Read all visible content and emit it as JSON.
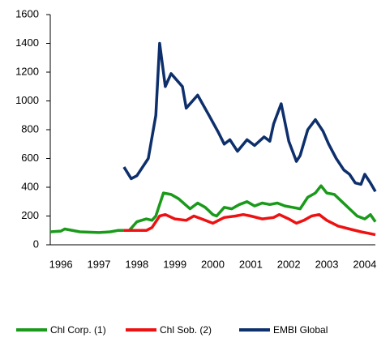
{
  "chart_data": {
    "type": "line",
    "xlim": [
      1995.72,
      2004.28
    ],
    "xticks": [
      1996,
      1997,
      1998,
      1999,
      2000,
      2001,
      2002,
      2003,
      2004
    ],
    "ylim": [
      0,
      1600
    ],
    "yticks": [
      0,
      200,
      400,
      600,
      800,
      1000,
      1200,
      1400,
      1600
    ],
    "grid": false,
    "legend": "bottom",
    "series": [
      {
        "name": "Chl Corp. (1)",
        "color": "#1a9a1a",
        "x": [
          1995.72,
          1996.0,
          1996.1,
          1996.5,
          1997.0,
          1997.3,
          1997.5,
          1997.8,
          1998.0,
          1998.25,
          1998.4,
          1998.5,
          1998.7,
          1998.9,
          1999.1,
          1999.4,
          1999.6,
          1999.8,
          2000.0,
          2000.1,
          2000.3,
          2000.5,
          2000.7,
          2000.9,
          2001.1,
          2001.3,
          2001.5,
          2001.7,
          2001.9,
          2002.1,
          2002.3,
          2002.5,
          2002.7,
          2002.85,
          2003.0,
          2003.2,
          2003.4,
          2003.6,
          2003.8,
          2004.0,
          2004.15,
          2004.28
        ],
        "values": [
          90,
          95,
          110,
          90,
          85,
          90,
          100,
          100,
          160,
          180,
          170,
          200,
          360,
          350,
          320,
          250,
          290,
          260,
          210,
          200,
          260,
          250,
          280,
          300,
          270,
          290,
          280,
          290,
          270,
          260,
          250,
          330,
          360,
          410,
          360,
          350,
          300,
          250,
          200,
          180,
          210,
          160
        ]
      },
      {
        "name": "Chl Sob. (2)",
        "color": "#ee1111",
        "x": [
          1997.66,
          1998.0,
          1998.25,
          1998.4,
          1998.6,
          1998.75,
          1999.0,
          1999.3,
          1999.5,
          1999.8,
          2000.0,
          2000.3,
          2000.6,
          2000.8,
          2001.0,
          2001.3,
          2001.6,
          2001.75,
          2002.0,
          2002.2,
          2002.4,
          2002.6,
          2002.8,
          2003.0,
          2003.3,
          2003.6,
          2003.9,
          2004.1,
          2004.28
        ],
        "values": [
          100,
          100,
          100,
          120,
          200,
          210,
          180,
          170,
          200,
          170,
          150,
          190,
          200,
          210,
          200,
          180,
          190,
          210,
          180,
          150,
          170,
          200,
          210,
          170,
          130,
          110,
          90,
          80,
          70
        ]
      },
      {
        "name": "EMBI Global",
        "color": "#0d2f6b",
        "x": [
          1997.66,
          1997.85,
          1998.0,
          1998.3,
          1998.5,
          1998.6,
          1998.75,
          1998.9,
          1999.2,
          1999.3,
          1999.6,
          1999.9,
          2000.15,
          2000.3,
          2000.45,
          2000.65,
          2000.9,
          2001.1,
          2001.35,
          2001.5,
          2001.6,
          2001.8,
          2002.0,
          2002.2,
          2002.3,
          2002.5,
          2002.7,
          2002.9,
          2003.05,
          2003.25,
          2003.45,
          2003.6,
          2003.75,
          2003.9,
          2004.0,
          2004.15,
          2004.28
        ],
        "values": [
          540,
          460,
          480,
          600,
          900,
          1400,
          1100,
          1190,
          1100,
          950,
          1040,
          900,
          780,
          700,
          730,
          650,
          730,
          690,
          750,
          720,
          840,
          980,
          720,
          580,
          620,
          800,
          870,
          790,
          700,
          600,
          520,
          490,
          430,
          420,
          490,
          430,
          370
        ]
      }
    ]
  }
}
